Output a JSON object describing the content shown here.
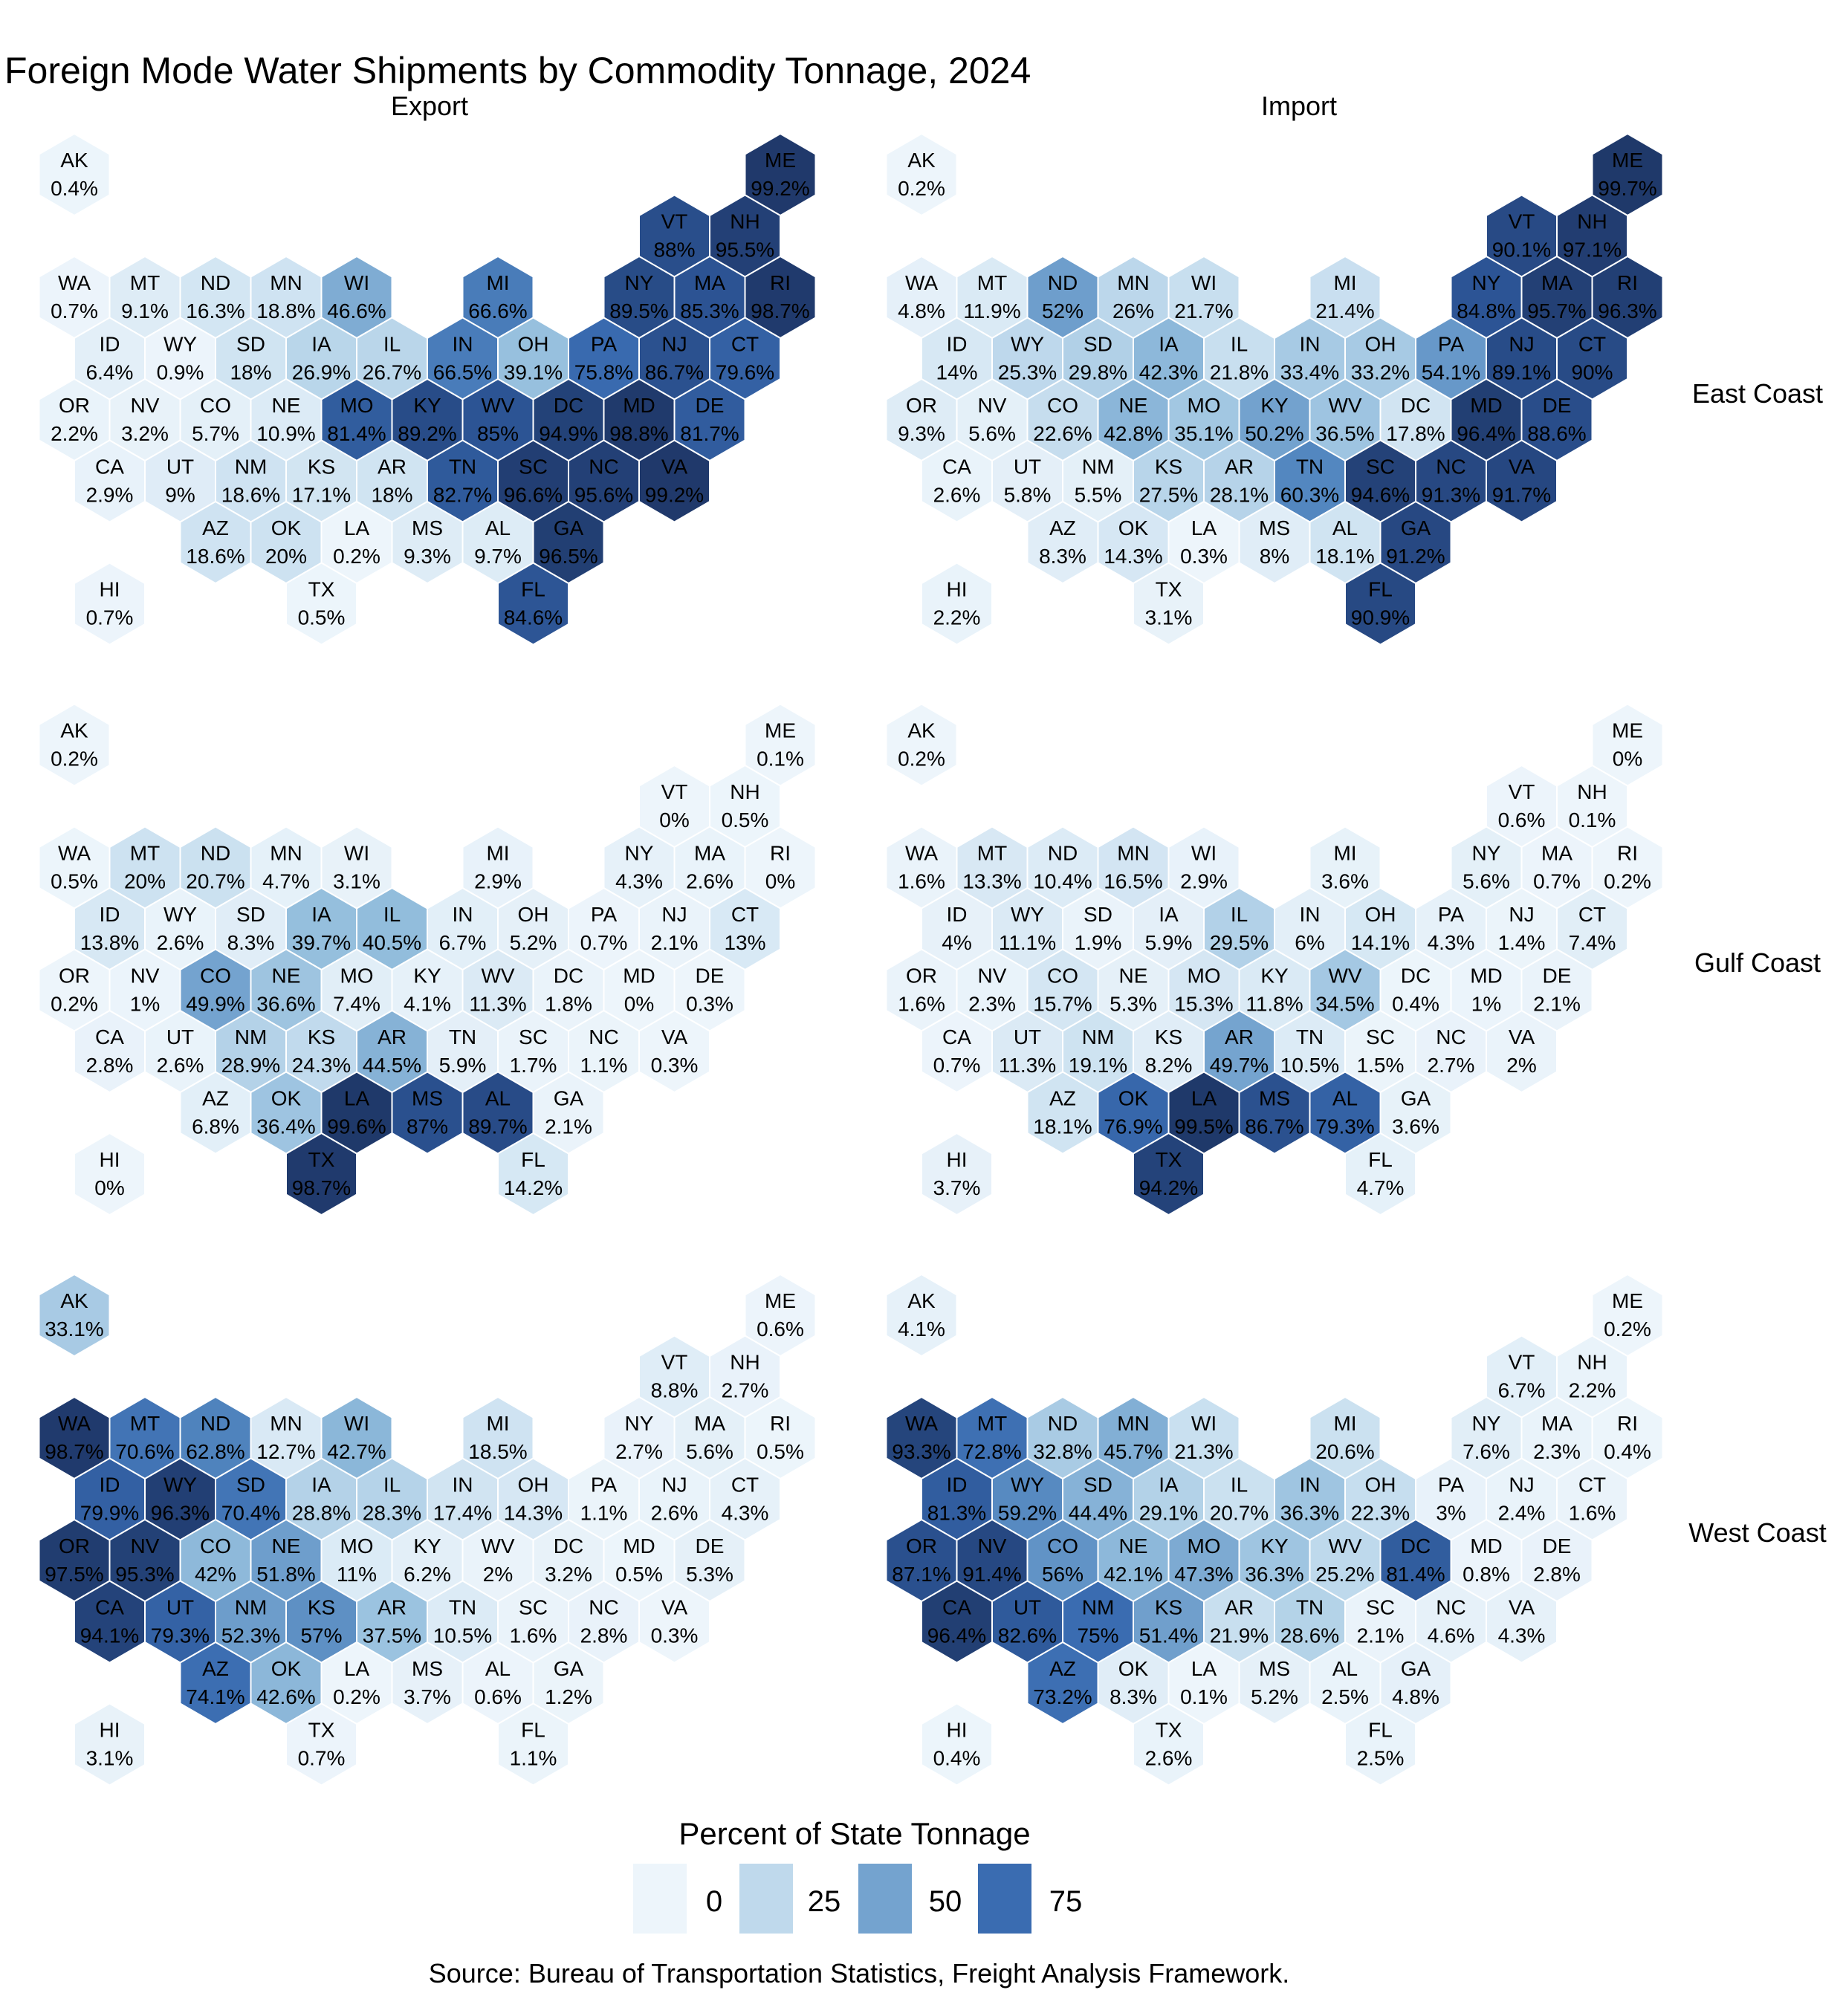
{
  "title": "Foreign Mode Water Shipments by Commodity Tonnage, 2024",
  "columns": [
    "Export",
    "Import"
  ],
  "rows": [
    "East Coast",
    "Gulf Coast",
    "West Coast"
  ],
  "legend": {
    "title": "Percent of State Tonnage",
    "breaks": [
      0,
      25,
      50,
      75
    ]
  },
  "source": "Source: Bureau of Transportation Statistics, Freight Analysis Framework.",
  "color_scale": {
    "domain": [
      0,
      100
    ],
    "stops": [
      [
        0,
        "#edf5fb"
      ],
      [
        20,
        "#cde2f1"
      ],
      [
        40,
        "#94bedd"
      ],
      [
        60,
        "#5488c0"
      ],
      [
        75,
        "#3a6cb1"
      ],
      [
        85,
        "#2c5494"
      ],
      [
        100,
        "#1f3869"
      ]
    ],
    "white_text_threshold": 60,
    "dark_text_color": "#1a1a1a",
    "light_text_color": "#ffffff",
    "hex_border_color": "#ffffff"
  },
  "chart_data": {
    "type": "heatmap",
    "subtype": "us-state-hex-tile-map-small-multiples",
    "value_unit": "percent",
    "title": "Foreign Mode Water Shipments by Commodity Tonnage, 2024",
    "column_facets": [
      "Export",
      "Import"
    ],
    "row_facets": [
      "East Coast",
      "Gulf Coast",
      "West Coast"
    ],
    "states": [
      {
        "abbr": "AK",
        "col": 0,
        "row": 0
      },
      {
        "abbr": "ME",
        "col": 10,
        "row": 0
      },
      {
        "abbr": "VT",
        "col": 8.5,
        "row": 1
      },
      {
        "abbr": "NH",
        "col": 9.5,
        "row": 1
      },
      {
        "abbr": "WA",
        "col": 0,
        "row": 2
      },
      {
        "abbr": "MT",
        "col": 1,
        "row": 2
      },
      {
        "abbr": "ND",
        "col": 2,
        "row": 2
      },
      {
        "abbr": "MN",
        "col": 3,
        "row": 2
      },
      {
        "abbr": "WI",
        "col": 4,
        "row": 2
      },
      {
        "abbr": "MI",
        "col": 6,
        "row": 2
      },
      {
        "abbr": "NY",
        "col": 8,
        "row": 2
      },
      {
        "abbr": "MA",
        "col": 9,
        "row": 2
      },
      {
        "abbr": "RI",
        "col": 10,
        "row": 2
      },
      {
        "abbr": "ID",
        "col": 0.5,
        "row": 3
      },
      {
        "abbr": "WY",
        "col": 1.5,
        "row": 3
      },
      {
        "abbr": "SD",
        "col": 2.5,
        "row": 3
      },
      {
        "abbr": "IA",
        "col": 3.5,
        "row": 3
      },
      {
        "abbr": "IL",
        "col": 4.5,
        "row": 3
      },
      {
        "abbr": "IN",
        "col": 5.5,
        "row": 3
      },
      {
        "abbr": "OH",
        "col": 6.5,
        "row": 3
      },
      {
        "abbr": "PA",
        "col": 7.5,
        "row": 3
      },
      {
        "abbr": "NJ",
        "col": 8.5,
        "row": 3
      },
      {
        "abbr": "CT",
        "col": 9.5,
        "row": 3
      },
      {
        "abbr": "OR",
        "col": 0,
        "row": 4
      },
      {
        "abbr": "NV",
        "col": 1,
        "row": 4
      },
      {
        "abbr": "CO",
        "col": 2,
        "row": 4
      },
      {
        "abbr": "NE",
        "col": 3,
        "row": 4
      },
      {
        "abbr": "MO",
        "col": 4,
        "row": 4
      },
      {
        "abbr": "KY",
        "col": 5,
        "row": 4
      },
      {
        "abbr": "WV",
        "col": 6,
        "row": 4
      },
      {
        "abbr": "DC",
        "col": 7,
        "row": 4
      },
      {
        "abbr": "MD",
        "col": 8,
        "row": 4
      },
      {
        "abbr": "DE",
        "col": 9,
        "row": 4
      },
      {
        "abbr": "CA",
        "col": 0.5,
        "row": 5
      },
      {
        "abbr": "UT",
        "col": 1.5,
        "row": 5
      },
      {
        "abbr": "NM",
        "col": 2.5,
        "row": 5
      },
      {
        "abbr": "KS",
        "col": 3.5,
        "row": 5
      },
      {
        "abbr": "AR",
        "col": 4.5,
        "row": 5
      },
      {
        "abbr": "TN",
        "col": 5.5,
        "row": 5
      },
      {
        "abbr": "SC",
        "col": 6.5,
        "row": 5
      },
      {
        "abbr": "NC",
        "col": 7.5,
        "row": 5
      },
      {
        "abbr": "VA",
        "col": 8.5,
        "row": 5
      },
      {
        "abbr": "AZ",
        "col": 2,
        "row": 6
      },
      {
        "abbr": "OK",
        "col": 3,
        "row": 6
      },
      {
        "abbr": "LA",
        "col": 4,
        "row": 6
      },
      {
        "abbr": "MS",
        "col": 5,
        "row": 6
      },
      {
        "abbr": "AL",
        "col": 6,
        "row": 6
      },
      {
        "abbr": "GA",
        "col": 7,
        "row": 6
      },
      {
        "abbr": "HI",
        "col": 0.5,
        "row": 7
      },
      {
        "abbr": "TX",
        "col": 3.5,
        "row": 7
      },
      {
        "abbr": "FL",
        "col": 6.5,
        "row": 7
      }
    ],
    "panels": [
      {
        "column": "Export",
        "row": "East Coast",
        "values": {
          "AK": 0.4,
          "ME": 99.2,
          "VT": 88,
          "NH": 95.5,
          "WA": 0.7,
          "MT": 9.1,
          "ND": 16.3,
          "MN": 18.8,
          "WI": 46.6,
          "MI": 66.6,
          "NY": 89.5,
          "MA": 85.3,
          "RI": 98.7,
          "ID": 6.4,
          "WY": 0.9,
          "SD": 18,
          "IA": 26.9,
          "IL": 26.7,
          "IN": 66.5,
          "OH": 39.1,
          "PA": 75.8,
          "NJ": 86.7,
          "CT": 79.6,
          "OR": 2.2,
          "NV": 3.2,
          "CO": 5.7,
          "NE": 10.9,
          "MO": 81.4,
          "KY": 89.2,
          "WV": 85,
          "DC": 94.9,
          "MD": 98.8,
          "DE": 81.7,
          "CA": 2.9,
          "UT": 9,
          "NM": 18.6,
          "KS": 17.1,
          "AR": 18,
          "TN": 82.7,
          "SC": 96.6,
          "NC": 95.6,
          "VA": 99.2,
          "AZ": 18.6,
          "OK": 20,
          "LA": 0.2,
          "MS": 9.3,
          "AL": 9.7,
          "GA": 96.5,
          "HI": 0.7,
          "TX": 0.5,
          "FL": 84.6
        }
      },
      {
        "column": "Import",
        "row": "East Coast",
        "values": {
          "AK": 0.2,
          "ME": 99.7,
          "VT": 90.1,
          "NH": 97.1,
          "WA": 4.8,
          "MT": 11.9,
          "ND": 52,
          "MN": 26,
          "WI": 21.7,
          "MI": 21.4,
          "NY": 84.8,
          "MA": 95.7,
          "RI": 96.3,
          "ID": 14,
          "WY": 25.3,
          "SD": 29.8,
          "IA": 42.3,
          "IL": 21.8,
          "IN": 33.4,
          "OH": 33.2,
          "PA": 54.1,
          "NJ": 89.1,
          "CT": 90,
          "OR": 9.3,
          "NV": 5.6,
          "CO": 22.6,
          "NE": 42.8,
          "MO": 35.1,
          "KY": 50.2,
          "WV": 36.5,
          "DC": 17.8,
          "MD": 96.4,
          "DE": 88.6,
          "CA": 2.6,
          "UT": 5.8,
          "NM": 5.5,
          "KS": 27.5,
          "AR": 28.1,
          "TN": 60.3,
          "SC": 94.6,
          "NC": 91.3,
          "VA": 91.7,
          "AZ": 8.3,
          "OK": 14.3,
          "LA": 0.3,
          "MS": 8,
          "AL": 18.1,
          "GA": 91.2,
          "HI": 2.2,
          "TX": 3.1,
          "FL": 90.9
        }
      },
      {
        "column": "Export",
        "row": "Gulf Coast",
        "values": {
          "AK": 0.2,
          "ME": 0.1,
          "VT": 0,
          "NH": 0.5,
          "WA": 0.5,
          "MT": 20,
          "ND": 20.7,
          "MN": 4.7,
          "WI": 3.1,
          "MI": 2.9,
          "NY": 4.3,
          "MA": 2.6,
          "RI": 0,
          "ID": 13.8,
          "WY": 2.6,
          "SD": 8.3,
          "IA": 39.7,
          "IL": 40.5,
          "IN": 6.7,
          "OH": 5.2,
          "PA": 0.7,
          "NJ": 2.1,
          "CT": 13,
          "OR": 0.2,
          "NV": 1,
          "CO": 49.9,
          "NE": 36.6,
          "MO": 7.4,
          "KY": 4.1,
          "WV": 11.3,
          "DC": 1.8,
          "MD": 0,
          "DE": 0.3,
          "CA": 2.8,
          "UT": 2.6,
          "NM": 28.9,
          "KS": 24.3,
          "AR": 44.5,
          "TN": 5.9,
          "SC": 1.7,
          "NC": 1.1,
          "VA": 0.3,
          "AZ": 6.8,
          "OK": 36.4,
          "LA": 99.6,
          "MS": 87,
          "AL": 89.7,
          "GA": 2.1,
          "HI": 0,
          "TX": 98.7,
          "FL": 14.2
        }
      },
      {
        "column": "Import",
        "row": "Gulf Coast",
        "values": {
          "AK": 0.2,
          "ME": 0,
          "VT": 0.6,
          "NH": 0.1,
          "WA": 1.6,
          "MT": 13.3,
          "ND": 10.4,
          "MN": 16.5,
          "WI": 2.9,
          "MI": 3.6,
          "NY": 5.6,
          "MA": 0.7,
          "RI": 0.2,
          "ID": 4,
          "WY": 11.1,
          "SD": 1.9,
          "IA": 5.9,
          "IL": 29.5,
          "IN": 6,
          "OH": 14.1,
          "PA": 4.3,
          "NJ": 1.4,
          "CT": 7.4,
          "OR": 1.6,
          "NV": 2.3,
          "CO": 15.7,
          "NE": 5.3,
          "MO": 15.3,
          "KY": 11.8,
          "WV": 34.5,
          "DC": 0.4,
          "MD": 1,
          "DE": 2.1,
          "CA": 0.7,
          "UT": 11.3,
          "NM": 19.1,
          "KS": 8.2,
          "AR": 49.7,
          "TN": 10.5,
          "SC": 1.5,
          "NC": 2.7,
          "VA": 2,
          "AZ": 18.1,
          "OK": 76.9,
          "LA": 99.5,
          "MS": 86.7,
          "AL": 79.3,
          "GA": 3.6,
          "HI": 3.7,
          "TX": 94.2,
          "FL": 4.7
        }
      },
      {
        "column": "Export",
        "row": "West Coast",
        "values": {
          "AK": 33.1,
          "ME": 0.6,
          "VT": 8.8,
          "NH": 2.7,
          "WA": 98.7,
          "MT": 70.6,
          "ND": 62.8,
          "MN": 12.7,
          "WI": 42.7,
          "MI": 18.5,
          "NY": 2.7,
          "MA": 5.6,
          "RI": 0.5,
          "ID": 79.9,
          "WY": 96.3,
          "SD": 70.4,
          "IA": 28.8,
          "IL": 28.3,
          "IN": 17.4,
          "OH": 14.3,
          "PA": 1.1,
          "NJ": 2.6,
          "CT": 4.3,
          "OR": 97.5,
          "NV": 95.3,
          "CO": 42,
          "NE": 51.8,
          "MO": 11,
          "KY": 6.2,
          "WV": 2,
          "DC": 3.2,
          "MD": 0.5,
          "DE": 5.3,
          "CA": 94.1,
          "UT": 79.3,
          "NM": 52.3,
          "KS": 57,
          "AR": 37.5,
          "TN": 10.5,
          "SC": 1.6,
          "NC": 2.8,
          "VA": 0.3,
          "AZ": 74.1,
          "OK": 42.6,
          "LA": 0.2,
          "MS": 3.7,
          "AL": 0.6,
          "GA": 1.2,
          "HI": 3.1,
          "TX": 0.7,
          "FL": 1.1
        }
      },
      {
        "column": "Import",
        "row": "West Coast",
        "values": {
          "AK": 4.1,
          "ME": 0.2,
          "VT": 6.7,
          "NH": 2.2,
          "WA": 93.3,
          "MT": 72.8,
          "ND": 32.8,
          "MN": 45.7,
          "WI": 21.3,
          "MI": 20.6,
          "NY": 7.6,
          "MA": 2.3,
          "RI": 0.4,
          "ID": 81.3,
          "WY": 59.2,
          "SD": 44.4,
          "IA": 29.1,
          "IL": 20.7,
          "IN": 36.3,
          "OH": 22.3,
          "PA": 3,
          "NJ": 2.4,
          "CT": 1.6,
          "OR": 87.1,
          "NV": 91.4,
          "CO": 56,
          "NE": 42.1,
          "MO": 47.3,
          "KY": 36.3,
          "WV": 25.2,
          "DC": 81.4,
          "MD": 0.8,
          "DE": 2.8,
          "CA": 96.4,
          "UT": 82.6,
          "NM": 75,
          "KS": 51.4,
          "AR": 21.9,
          "TN": 28.6,
          "SC": 2.1,
          "NC": 4.6,
          "VA": 4.3,
          "AZ": 73.2,
          "OK": 8.3,
          "LA": 0.1,
          "MS": 5.2,
          "AL": 2.5,
          "GA": 4.8,
          "HI": 0.4,
          "TX": 2.6,
          "FL": 2.5
        }
      }
    ]
  }
}
